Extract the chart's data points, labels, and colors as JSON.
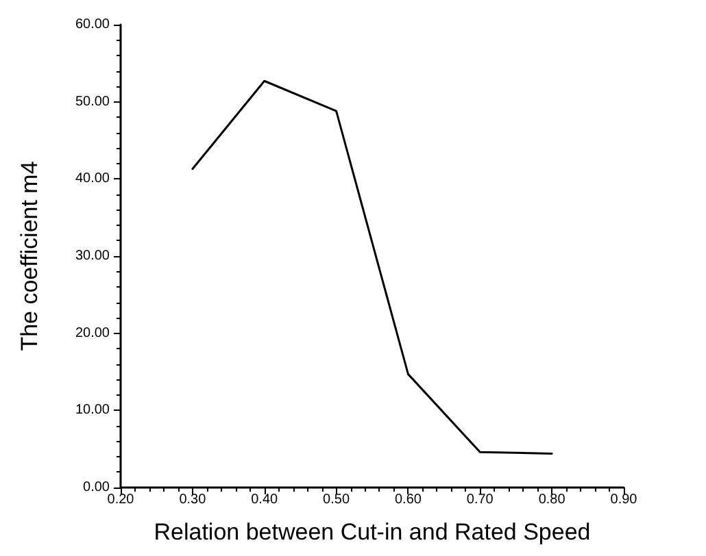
{
  "chart_data": {
    "type": "line",
    "xlabel": "Relation between Cut-in and Rated Speed",
    "ylabel": "The coefficient m4",
    "x": [
      0.3,
      0.4,
      0.5,
      0.6,
      0.7,
      0.8
    ],
    "series": [
      {
        "color": "#000000",
        "values": [
          41.3,
          52.7,
          48.8,
          14.7,
          4.6,
          4.4
        ]
      }
    ],
    "xlim": [
      0.2,
      0.9
    ],
    "xticks": [
      {
        "value": 0.2,
        "label": "0.20"
      },
      {
        "value": 0.3,
        "label": "0.30"
      },
      {
        "value": 0.4,
        "label": "0.40"
      },
      {
        "value": 0.5,
        "label": "0.50"
      },
      {
        "value": 0.6,
        "label": "0.60"
      },
      {
        "value": 0.7,
        "label": "0.70"
      },
      {
        "value": 0.8,
        "label": "0.80"
      },
      {
        "value": 0.9,
        "label": "0.90"
      }
    ],
    "ylim": [
      0,
      60
    ],
    "yticks": [
      {
        "value": 0,
        "label": "0.00"
      },
      {
        "value": 10,
        "label": "10.00"
      },
      {
        "value": 20,
        "label": "20.00"
      },
      {
        "value": 30,
        "label": "30.00"
      },
      {
        "value": 40,
        "label": "40.00"
      },
      {
        "value": 50,
        "label": "50.00"
      },
      {
        "value": 60,
        "label": "60.00"
      }
    ],
    "grid": false,
    "marker": "none",
    "line_style": "solid"
  }
}
